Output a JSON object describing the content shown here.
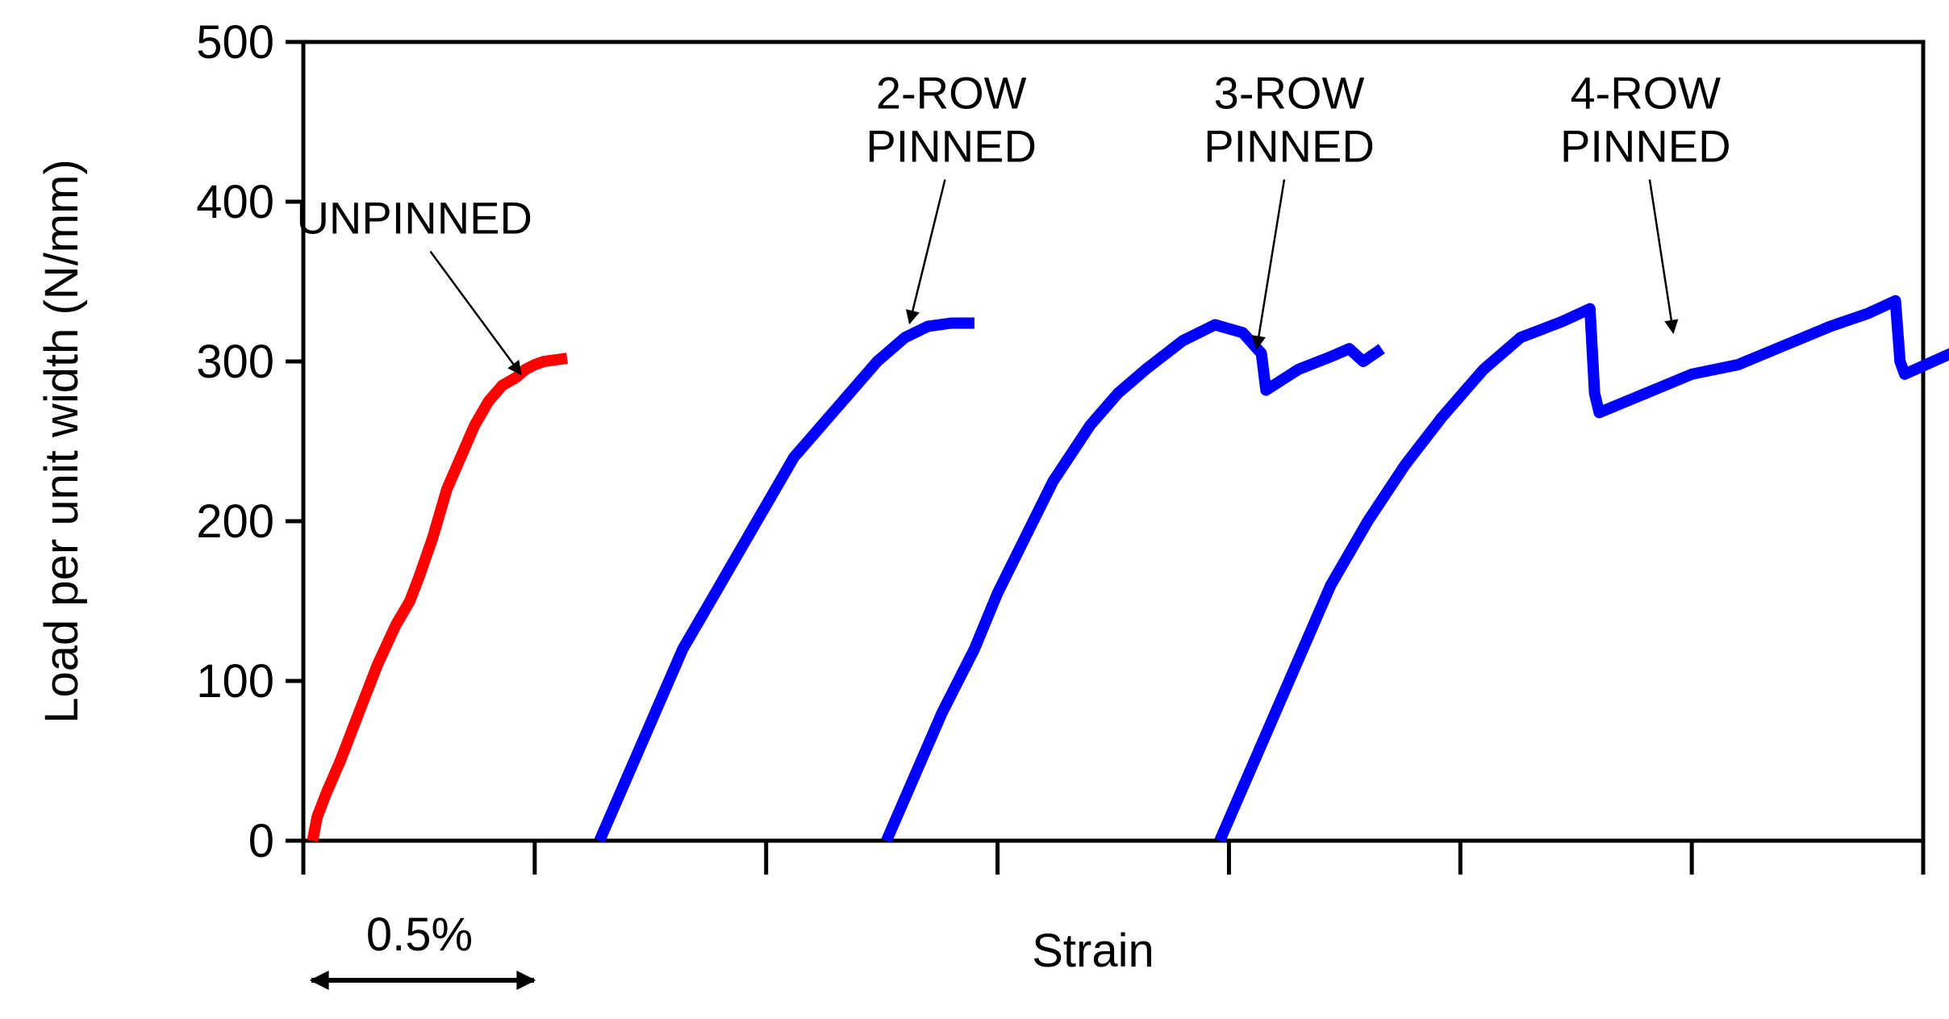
{
  "chart_data": {
    "type": "line",
    "xlabel": "Strain",
    "ylabel": "Load per unit width (N/mm)",
    "ylim": [
      0,
      500
    ],
    "xlim": [
      0,
      3.5
    ],
    "x_unit": "% strain (curves offset horizontally)",
    "yticks": [
      "0",
      "100",
      "200",
      "300",
      "400",
      "500"
    ],
    "xtick_count": 8,
    "scale_bar": {
      "label": "0.5%",
      "length": 0.5
    },
    "grid": false,
    "series": [
      {
        "name": "UNPINNED",
        "color": "#ff0000",
        "points": [
          [
            0.02,
            0
          ],
          [
            0.03,
            15
          ],
          [
            0.05,
            30
          ],
          [
            0.08,
            50
          ],
          [
            0.12,
            80
          ],
          [
            0.16,
            110
          ],
          [
            0.2,
            135
          ],
          [
            0.23,
            150
          ],
          [
            0.25,
            165
          ],
          [
            0.28,
            190
          ],
          [
            0.31,
            220
          ],
          [
            0.34,
            240
          ],
          [
            0.37,
            260
          ],
          [
            0.4,
            275
          ],
          [
            0.43,
            285
          ],
          [
            0.46,
            290
          ],
          [
            0.48,
            295
          ],
          [
            0.5,
            298
          ],
          [
            0.52,
            300
          ],
          [
            0.57,
            302
          ]
        ]
      },
      {
        "name": "2-ROW PINNED",
        "color": "#0000ff",
        "points": [
          [
            0.64,
            0
          ],
          [
            0.7,
            40
          ],
          [
            0.76,
            80
          ],
          [
            0.82,
            120
          ],
          [
            0.88,
            150
          ],
          [
            0.94,
            180
          ],
          [
            1.0,
            210
          ],
          [
            1.06,
            240
          ],
          [
            1.12,
            260
          ],
          [
            1.18,
            280
          ],
          [
            1.24,
            300
          ],
          [
            1.3,
            315
          ],
          [
            1.35,
            322
          ],
          [
            1.4,
            324
          ],
          [
            1.45,
            324
          ]
        ]
      },
      {
        "name": "3-ROW PINNED",
        "color": "#0000ff",
        "points": [
          [
            1.26,
            0
          ],
          [
            1.32,
            40
          ],
          [
            1.38,
            80
          ],
          [
            1.45,
            120
          ],
          [
            1.5,
            155
          ],
          [
            1.56,
            190
          ],
          [
            1.62,
            225
          ],
          [
            1.7,
            260
          ],
          [
            1.76,
            280
          ],
          [
            1.82,
            295
          ],
          [
            1.9,
            313
          ],
          [
            1.97,
            323
          ],
          [
            2.03,
            318
          ],
          [
            2.07,
            305
          ],
          [
            2.08,
            282
          ],
          [
            2.15,
            295
          ],
          [
            2.22,
            303
          ],
          [
            2.26,
            308
          ],
          [
            2.29,
            300
          ],
          [
            2.33,
            308
          ]
        ]
      },
      {
        "name": "4-ROW PINNED",
        "color": "#0000ff",
        "points": [
          [
            1.98,
            0
          ],
          [
            2.04,
            40
          ],
          [
            2.1,
            80
          ],
          [
            2.16,
            120
          ],
          [
            2.22,
            160
          ],
          [
            2.3,
            200
          ],
          [
            2.38,
            235
          ],
          [
            2.46,
            265
          ],
          [
            2.55,
            295
          ],
          [
            2.63,
            315
          ],
          [
            2.72,
            325
          ],
          [
            2.78,
            333
          ],
          [
            2.79,
            280
          ],
          [
            2.8,
            268
          ],
          [
            2.9,
            280
          ],
          [
            3.0,
            292
          ],
          [
            3.1,
            298
          ],
          [
            3.2,
            310
          ],
          [
            3.3,
            322
          ],
          [
            3.38,
            330
          ],
          [
            3.44,
            338
          ],
          [
            3.45,
            300
          ],
          [
            3.46,
            292
          ],
          [
            3.56,
            305
          ],
          [
            3.66,
            322
          ]
        ]
      }
    ],
    "annotations": [
      {
        "lines": [
          "UNPINNED"
        ],
        "target_series": "UNPINNED",
        "label_at": [
          0.24,
          380
        ],
        "arrow_to": [
          0.47,
          292
        ]
      },
      {
        "lines": [
          "2-ROW",
          "PINNED"
        ],
        "target_series": "2-ROW PINNED",
        "label_at": [
          1.4,
          425
        ],
        "arrow_to": [
          1.31,
          324
        ]
      },
      {
        "lines": [
          "3-ROW",
          "PINNED"
        ],
        "target_series": "3-ROW PINNED",
        "label_at": [
          2.13,
          425
        ],
        "arrow_to": [
          2.06,
          308
        ]
      },
      {
        "lines": [
          "4-ROW",
          "PINNED"
        ],
        "target_series": "4-ROW PINNED",
        "label_at": [
          2.9,
          425
        ],
        "arrow_to": [
          2.96,
          318
        ]
      }
    ]
  }
}
